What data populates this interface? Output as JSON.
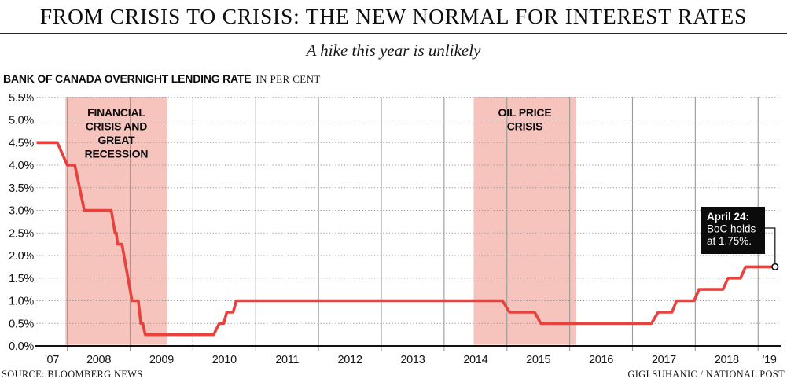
{
  "header": {
    "title": "FROM CRISIS TO CRISIS: THE NEW NORMAL FOR INTEREST RATES",
    "subtitle": "A hike this year is unlikely",
    "kicker": "BANK OF CANADA OVERNIGHT LENDING RATE",
    "kicker_units": "IN PER CENT"
  },
  "footer": {
    "source": "SOURCE: BLOOMBERG NEWS",
    "credit": "GIGI SUHANIC / NATIONAL POST"
  },
  "colors": {
    "line": "#e8423f",
    "band": "#f6c4bd",
    "grid_dotted": "#8f8f8f",
    "grid_vertical": "#9a9a9a",
    "axis": "#111111",
    "annotation_bg": "#0b0b0b",
    "annotation_text": "#ffffff"
  },
  "chart_data": {
    "type": "line",
    "title": "BANK OF CANADA OVERNIGHT LENDING RATE",
    "units": "IN PER CENT",
    "x_domain": [
      2007.51,
      2019.36
    ],
    "y_range": [
      0,
      5.5
    ],
    "y_tick_step": 0.5,
    "y_tick_labels": [
      "0.0%",
      "0.5%",
      "1.0%",
      "1.5%",
      "2.0%",
      "2.5%",
      "3.0%",
      "3.5%",
      "4.0%",
      "4.5%",
      "5.0%",
      "5.5%"
    ],
    "x_tick_labels": [
      "'07",
      "2008",
      "2009",
      "2010",
      "2011",
      "2012",
      "2013",
      "2014",
      "2015",
      "2016",
      "2017",
      "2018",
      "'19"
    ],
    "grid": true,
    "legend": "none",
    "series": [
      {
        "name": "Bank of Canada overnight lending rate (%)",
        "points": [
          [
            2007.51,
            4.5
          ],
          [
            2007.84,
            4.5
          ],
          [
            2008.0,
            4.0
          ],
          [
            2008.12,
            4.0
          ],
          [
            2008.27,
            3.0
          ],
          [
            2008.7,
            3.0
          ],
          [
            2008.76,
            2.5
          ],
          [
            2008.78,
            2.5
          ],
          [
            2008.8,
            2.25
          ],
          [
            2008.87,
            2.25
          ],
          [
            2009.03,
            1.0
          ],
          [
            2009.13,
            1.0
          ],
          [
            2009.17,
            0.5
          ],
          [
            2009.2,
            0.5
          ],
          [
            2009.24,
            0.25
          ],
          [
            2010.33,
            0.25
          ],
          [
            2010.42,
            0.5
          ],
          [
            2010.49,
            0.5
          ],
          [
            2010.54,
            0.75
          ],
          [
            2010.64,
            0.75
          ],
          [
            2010.69,
            1.0
          ],
          [
            2014.93,
            1.0
          ],
          [
            2015.04,
            0.75
          ],
          [
            2015.44,
            0.75
          ],
          [
            2015.54,
            0.5
          ],
          [
            2017.3,
            0.5
          ],
          [
            2017.41,
            0.75
          ],
          [
            2017.63,
            0.75
          ],
          [
            2017.7,
            1.0
          ],
          [
            2017.98,
            1.0
          ],
          [
            2018.06,
            1.25
          ],
          [
            2018.44,
            1.25
          ],
          [
            2018.52,
            1.5
          ],
          [
            2018.72,
            1.5
          ],
          [
            2018.8,
            1.75
          ],
          [
            2019.27,
            1.75
          ]
        ]
      }
    ],
    "bands": [
      {
        "label_lines": [
          "FINANCIAL",
          "CRISIS AND",
          "GREAT",
          "RECESSION"
        ],
        "x_start": 2007.97,
        "x_end": 2009.59
      },
      {
        "label_lines": [
          "OIL PRICE",
          "CRISIS"
        ],
        "x_start": 2014.47,
        "x_end": 2016.1
      }
    ],
    "annotation": {
      "title": "April 24:",
      "lines": [
        "BoC holds",
        "at 1.75%."
      ],
      "point": [
        2019.27,
        1.75
      ]
    }
  }
}
